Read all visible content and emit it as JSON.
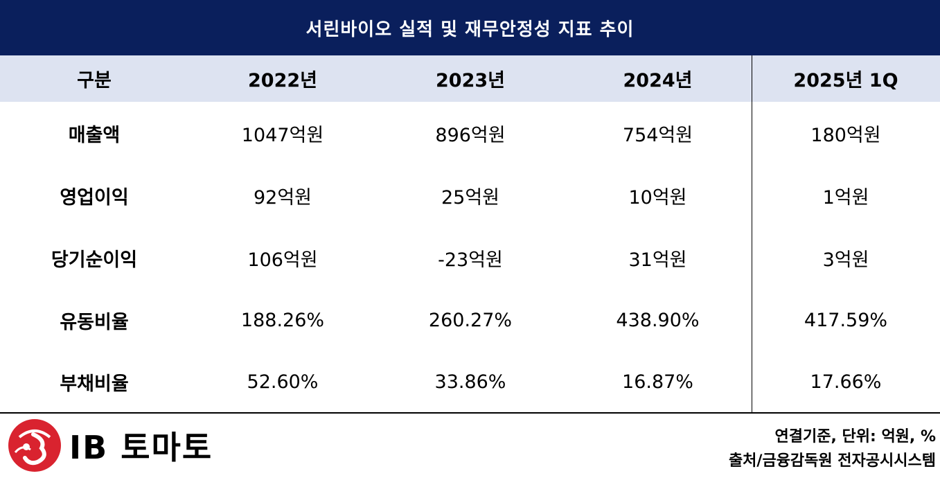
{
  "title": "서린바이오 실적 및 재무안정성 지표 추이",
  "header": [
    "구분",
    "2022년",
    "2023년",
    "2024년",
    "2025년 1Q"
  ],
  "rows": [
    {
      "label": "매출액",
      "values": [
        "1047억원",
        "896억원",
        "754억원",
        "180억원"
      ]
    },
    {
      "label": "영업이익",
      "values": [
        "92억원",
        "25억원",
        "10억원",
        "1억원"
      ]
    },
    {
      "label": "당기순이익",
      "values": [
        "106억원",
        "-23억원",
        "31억원",
        "3억원"
      ]
    },
    {
      "label": "유동비율",
      "values": [
        "188.26%",
        "260.27%",
        "438.90%",
        "417.59%"
      ]
    },
    {
      "label": "부채비율",
      "values": [
        "52.60%",
        "33.86%",
        "16.87%",
        "17.66%"
      ]
    }
  ],
  "logo": {
    "text": "IB 토마토",
    "brand_color": "#d9232f"
  },
  "footnote": {
    "unit": "연결기준, 단위: 억원, %",
    "source": "출처/금융감독원 전자공시시스템"
  },
  "colors": {
    "title_bg": "#0a1f5c",
    "header_bg": "#dde3f1"
  }
}
